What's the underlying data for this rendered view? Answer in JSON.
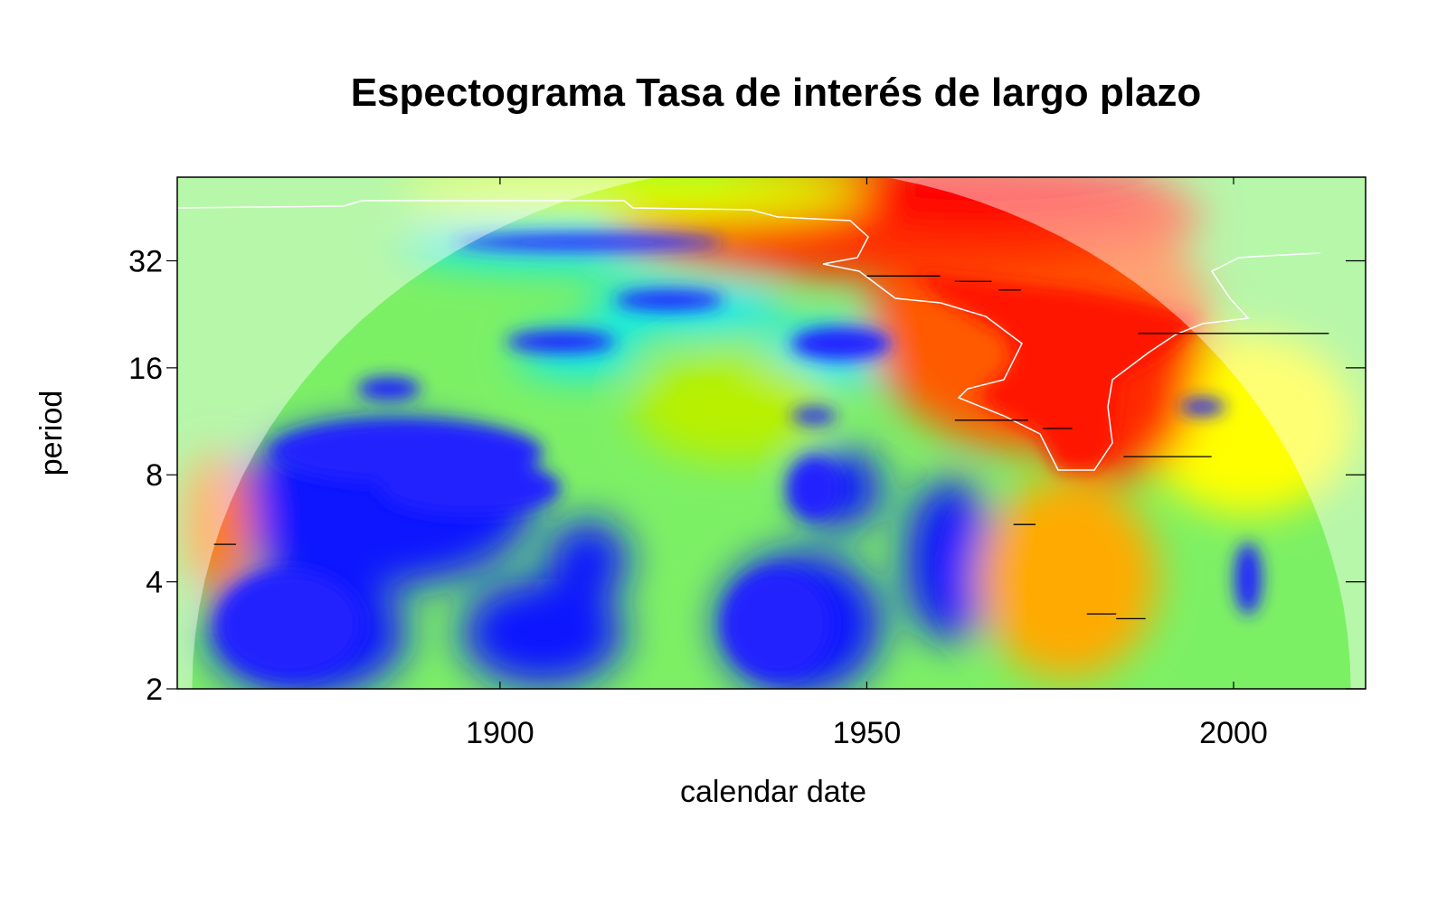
{
  "chart_data": {
    "type": "heatmap",
    "title": "Espectograma Tasa de interés de largo plazo",
    "xlabel": "calendar date",
    "ylabel": "period",
    "x_range": [
      1856,
      2018
    ],
    "y_range": [
      2,
      55
    ],
    "y_scale": "log2",
    "x_ticks": [
      "1900",
      "1950",
      "2000"
    ],
    "x_tick_values": [
      1900,
      1950,
      2000
    ],
    "y_ticks": [
      "2",
      "4",
      "8",
      "16",
      "32"
    ],
    "y_tick_values": [
      2,
      4,
      8,
      16,
      32
    ],
    "colormap": "rainbow (blue = low power, red = high power)",
    "cone_of_influence": true,
    "significance_contour_color": "#ffffff",
    "ridge_line_color": "#000000",
    "power_hotspots": [
      {
        "x": 1985,
        "period": 30,
        "power": 1.0
      },
      {
        "x": 1980,
        "period": 18,
        "power": 0.95
      },
      {
        "x": 1982,
        "period": 10,
        "power": 0.9
      },
      {
        "x": 1984,
        "period": 3.3,
        "power": 0.85
      },
      {
        "x": 1862,
        "period": 5.0,
        "power": 0.8
      },
      {
        "x": 1925,
        "period": 45,
        "power": 0.9
      },
      {
        "x": 1900,
        "period": 34,
        "power": 0.1
      },
      {
        "x": 1925,
        "period": 24,
        "power": 0.1
      },
      {
        "x": 1910,
        "period": 18,
        "power": 0.1
      },
      {
        "x": 1948,
        "period": 18,
        "power": 0.1
      },
      {
        "x": 1885,
        "period": 12,
        "power": 0.1
      },
      {
        "x": 1900,
        "period": 7,
        "power": 0.05
      },
      {
        "x": 1880,
        "period": 2.8,
        "power": 0.05
      },
      {
        "x": 1940,
        "period": 3.0,
        "power": 0.05
      }
    ],
    "ridge_segments": [
      {
        "x": [
          1950,
          1960
        ],
        "period": 29.0
      },
      {
        "x": [
          1962,
          1967
        ],
        "period": 28.0
      },
      {
        "x": [
          1968,
          1971
        ],
        "period": 26.5
      },
      {
        "x": [
          1987,
          2013
        ],
        "period": 20.0
      },
      {
        "x": [
          1962,
          1972
        ],
        "period": 11.4
      },
      {
        "x": [
          1974,
          1978
        ],
        "period": 10.8
      },
      {
        "x": [
          1985,
          1997
        ],
        "period": 9.0
      },
      {
        "x": [
          1970,
          1973
        ],
        "period": 5.8
      },
      {
        "x": [
          1980,
          1984
        ],
        "period": 3.25
      },
      {
        "x": [
          1984,
          1988
        ],
        "period": 3.15
      },
      {
        "x": [
          1861,
          1864
        ],
        "period": 5.1
      }
    ]
  }
}
